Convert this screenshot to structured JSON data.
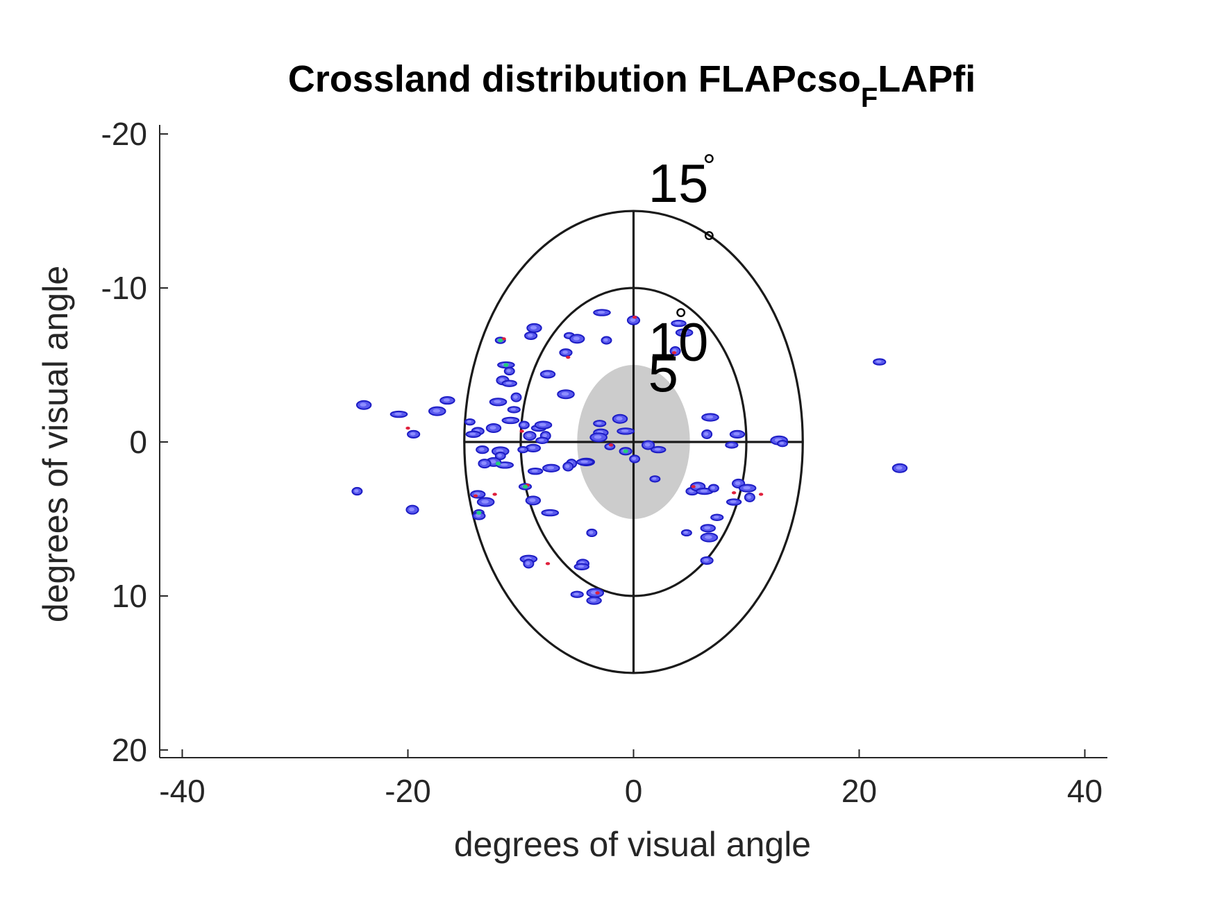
{
  "chart_data": {
    "type": "scatter",
    "title": "Crossland distribution FLAPcso",
    "title_subscript": "F",
    "title_suffix": "LAPfi",
    "xlabel": "degrees of visual angle",
    "ylabel": "degrees of visual angle",
    "xlim": [
      -42,
      42
    ],
    "ylim": [
      -20.5,
      20.5
    ],
    "y_reversed": true,
    "x_ticks": [
      "-40",
      "-20",
      "0",
      "20",
      "40"
    ],
    "x_tick_values": [
      -40,
      -20,
      0,
      20,
      40
    ],
    "y_ticks": [
      "-20",
      "-10",
      "0",
      "10",
      "20"
    ],
    "y_tick_values": [
      -20,
      -10,
      0,
      10,
      20
    ],
    "grid": false,
    "rings": [
      {
        "radius": 5,
        "label": "5",
        "degree_symbol": "°"
      },
      {
        "radius": 10,
        "label": "10",
        "degree_symbol": "°"
      },
      {
        "radius": 15,
        "label": "15",
        "degree_symbol": "°"
      }
    ],
    "scotoma": {
      "radius": 5,
      "color": "#cccccc"
    },
    "colors": {
      "blob_edge": "#1c1cc4",
      "blob_fill": "#5a5aee",
      "hot": "#e0203c",
      "core": "#22d07a"
    },
    "points": [
      [
        -11.8,
        -6.6
      ],
      [
        -9.1,
        -6.9
      ],
      [
        -8.8,
        -7.4
      ],
      [
        -11.3,
        -5.0
      ],
      [
        -11.0,
        -4.6
      ],
      [
        -11.6,
        -4.0
      ],
      [
        -11.0,
        -3.8
      ],
      [
        -12.0,
        -2.6
      ],
      [
        -10.4,
        -2.9
      ],
      [
        -10.6,
        -2.1
      ],
      [
        -7.6,
        -4.4
      ],
      [
        -6.0,
        -3.1
      ],
      [
        -5.7,
        -6.9
      ],
      [
        -6.0,
        -5.8
      ],
      [
        -5.0,
        -6.7
      ],
      [
        -2.8,
        -8.4
      ],
      [
        -2.4,
        -6.6
      ],
      [
        0.0,
        -7.9
      ],
      [
        4.0,
        -7.7
      ],
      [
        4.5,
        -7.1
      ],
      [
        3.7,
        -5.9
      ],
      [
        21.8,
        -5.2
      ],
      [
        -16.5,
        -2.7
      ],
      [
        -17.4,
        -2.0
      ],
      [
        -14.5,
        -1.3
      ],
      [
        -13.8,
        -0.7
      ],
      [
        -12.4,
        -0.9
      ],
      [
        -10.9,
        -1.4
      ],
      [
        -9.7,
        -1.1
      ],
      [
        -9.2,
        -0.4
      ],
      [
        -8.4,
        -0.9
      ],
      [
        -8.0,
        -1.1
      ],
      [
        -7.8,
        -0.4
      ],
      [
        -8.1,
        -0.1
      ],
      [
        -8.9,
        0.4
      ],
      [
        -11.8,
        0.6
      ],
      [
        -9.8,
        0.5
      ],
      [
        -13.4,
        0.5
      ],
      [
        -12.4,
        1.3
      ],
      [
        -11.4,
        1.5
      ],
      [
        -11.8,
        0.9
      ],
      [
        -13.2,
        1.4
      ],
      [
        -14.2,
        -0.5
      ],
      [
        -4.2,
        1.3
      ],
      [
        -5.5,
        1.4
      ],
      [
        -3.0,
        -1.2
      ],
      [
        -2.9,
        -0.6
      ],
      [
        -3.1,
        -0.3
      ],
      [
        -2.1,
        0.3
      ],
      [
        -0.7,
        0.6
      ],
      [
        -1.2,
        -1.5
      ],
      [
        -0.7,
        -0.7
      ],
      [
        0.1,
        1.1
      ],
      [
        1.3,
        0.2
      ],
      [
        2.2,
        0.5
      ],
      [
        6.8,
        -1.6
      ],
      [
        6.5,
        -0.5
      ],
      [
        8.7,
        0.2
      ],
      [
        9.2,
        -0.5
      ],
      [
        12.9,
        -0.1
      ],
      [
        13.2,
        0.1
      ],
      [
        -19.5,
        -0.5
      ],
      [
        -23.9,
        -2.4
      ],
      [
        -20.8,
        -1.8
      ],
      [
        -24.5,
        3.2
      ],
      [
        -19.6,
        4.4
      ],
      [
        -8.7,
        1.9
      ],
      [
        -7.3,
        1.7
      ],
      [
        -5.8,
        1.6
      ],
      [
        -9.6,
        2.9
      ],
      [
        -13.8,
        3.4
      ],
      [
        -13.1,
        3.9
      ],
      [
        -13.7,
        4.6
      ],
      [
        -13.7,
        4.8
      ],
      [
        -8.9,
        3.8
      ],
      [
        -7.4,
        4.6
      ],
      [
        -3.7,
        5.9
      ],
      [
        -4.5,
        7.9
      ],
      [
        -4.6,
        8.1
      ],
      [
        -9.3,
        7.6
      ],
      [
        -9.3,
        7.9
      ],
      [
        -5.0,
        9.9
      ],
      [
        -3.5,
        10.3
      ],
      [
        -3.4,
        9.8
      ],
      [
        1.9,
        2.4
      ],
      [
        5.2,
        3.2
      ],
      [
        5.7,
        2.9
      ],
      [
        6.3,
        3.2
      ],
      [
        7.1,
        3.0
      ],
      [
        9.3,
        2.7
      ],
      [
        8.9,
        3.9
      ],
      [
        10.1,
        3.0
      ],
      [
        10.3,
        3.6
      ],
      [
        7.4,
        4.9
      ],
      [
        6.6,
        5.6
      ],
      [
        6.7,
        6.2
      ],
      [
        4.7,
        5.9
      ],
      [
        6.5,
        7.7
      ],
      [
        23.6,
        1.7
      ],
      [
        -4.3,
        1.3
      ]
    ],
    "hot_points": [
      [
        -9.9,
        -0.7
      ],
      [
        -12.3,
        3.4
      ],
      [
        -14.0,
        3.5
      ],
      [
        -20.0,
        -0.9
      ],
      [
        -9.4,
        2.8
      ],
      [
        5.3,
        2.9
      ],
      [
        8.9,
        3.3
      ],
      [
        11.3,
        3.4
      ],
      [
        -3.2,
        9.8
      ],
      [
        0.1,
        -8.1
      ],
      [
        3.6,
        -5.8
      ],
      [
        -5.8,
        -5.5
      ],
      [
        -11.5,
        -6.7
      ],
      [
        -7.6,
        7.9
      ],
      [
        -2.0,
        0.2
      ]
    ],
    "core_points": [
      [
        -11.8,
        -6.6
      ],
      [
        -11.3,
        -5.0
      ],
      [
        -12.0,
        1.4
      ],
      [
        -0.7,
        0.6
      ],
      [
        -13.7,
        4.6
      ],
      [
        -9.6,
        2.9
      ]
    ]
  }
}
